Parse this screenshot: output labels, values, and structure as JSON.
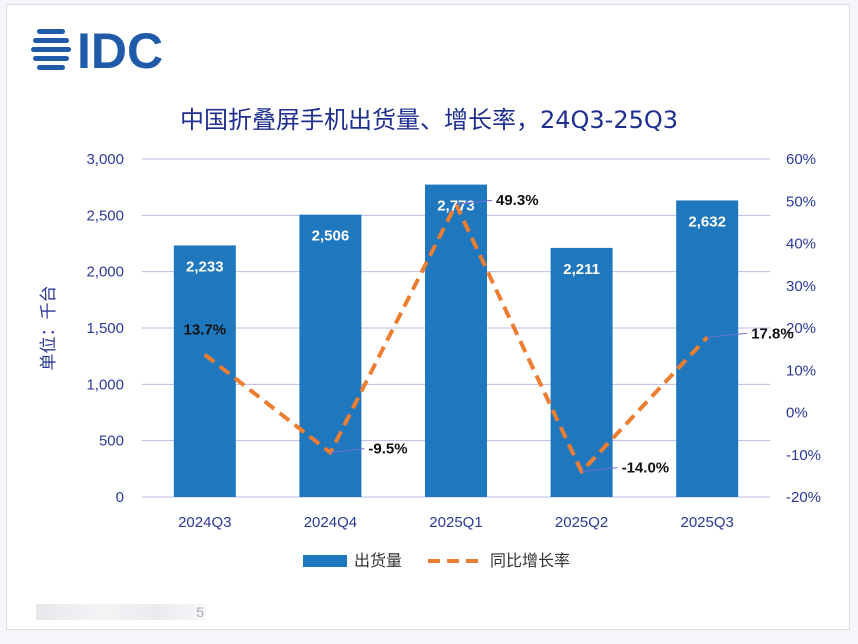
{
  "brand": {
    "logo_text": "IDC",
    "color": "#1f5ba8"
  },
  "chart_data": {
    "type": "bar+line",
    "title": "中国折叠屏手机出货量、增长率，24Q3-25Q3",
    "ylabel": "单位：千台",
    "categories": [
      "2024Q3",
      "2024Q4",
      "2025Q1",
      "2025Q2",
      "2025Q3"
    ],
    "series": [
      {
        "name": "出货量",
        "type": "bar",
        "axis": "left",
        "values": [
          2233,
          2506,
          2773,
          2211,
          2632
        ],
        "labels": [
          "2,233",
          "2,506",
          "2,773",
          "2,211",
          "2,632"
        ],
        "color": "#1f77be"
      },
      {
        "name": "同比增长率",
        "type": "line",
        "axis": "right",
        "values": [
          13.7,
          -9.5,
          49.3,
          -14.0,
          17.8
        ],
        "labels": [
          "13.7%",
          "-9.5%",
          "49.3%",
          "-14.0%",
          "17.8%"
        ],
        "color": "#ed7d31",
        "dashed": true
      }
    ],
    "y_left": {
      "min": 0,
      "max": 3000,
      "ticks": [
        "0",
        "500",
        "1,000",
        "1,500",
        "2,000",
        "2,500",
        "3,000"
      ]
    },
    "y_right": {
      "min": -20,
      "max": 60,
      "ticks": [
        "-20%",
        "-10%",
        "0%",
        "10%",
        "20%",
        "30%",
        "40%",
        "50%",
        "60%"
      ]
    },
    "grid": true,
    "legend_position": "bottom",
    "colors": {
      "axis_text": "#2b3a99",
      "grid": "#b8bde8",
      "leader": "#6b6fd8"
    }
  },
  "footer": {
    "watermark_tail": "5"
  }
}
